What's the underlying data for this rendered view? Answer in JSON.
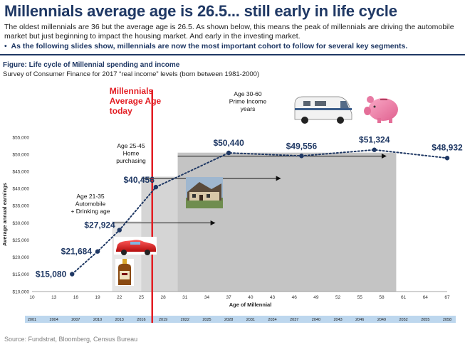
{
  "header": {
    "title": "Millennials average age is 26.5... still early in life cycle",
    "subtitle": "The oldest millennials are 36 but the average age is 26.5.  As shown below, this means the peak of millennials are driving the automobile market but just beginning to impact the housing market.  And early in the investing market.",
    "bullet": "As the following slides show, millennials are now the most important cohort to follow for several key segments."
  },
  "figure": {
    "title": "Figure: Life cycle of Millennial spending and income",
    "subtitle": "Survey of Consumer Finance for 2017 “real income” levels (born between 1981-2000)"
  },
  "source": "Source: Fundstrat, Bloomberg, Census Bureau",
  "colors": {
    "title": "#1f3864",
    "series": "#1f3864",
    "marker": "#e31e24",
    "band_light": "#e6e6e6",
    "band_mid": "#d5d5d5",
    "band_dark": "#c4c4c4",
    "year_strip": "#bdd7ee"
  },
  "chart_data": {
    "type": "line",
    "xlabel": "Age of Millennial",
    "ylabel": "Average annual earnings",
    "xlim": [
      10,
      67
    ],
    "ylim": [
      10000,
      55000
    ],
    "x_ticks": [
      "10",
      "13",
      "16",
      "19",
      "22",
      "25",
      "28",
      "31",
      "34",
      "37",
      "40",
      "43",
      "46",
      "49",
      "52",
      "55",
      "58",
      "61",
      "64",
      "67"
    ],
    "y_ticks": [
      "$10,000",
      "$15,000",
      "$20,000",
      "$25,000",
      "$30,000",
      "$35,000",
      "$40,000",
      "$45,000",
      "$50,000",
      "$55,000"
    ],
    "year_row": [
      "2001",
      "2004",
      "2007",
      "2010",
      "2013",
      "2016",
      "2019",
      "2022",
      "2025",
      "2028",
      "2031",
      "2034",
      "2037",
      "2040",
      "2043",
      "2046",
      "2049",
      "2052",
      "2055",
      "2058"
    ],
    "series": [
      {
        "x": [
          15.5,
          19,
          22,
          27,
          37,
          47,
          57,
          67
        ],
        "y": [
          15080,
          21684,
          27924,
          40456,
          50440,
          49556,
          51324,
          48932
        ]
      }
    ],
    "data_labels": [
      "$15,080",
      "$21,684",
      "$27,924",
      "$40,456",
      "$50,440",
      "$49,556",
      "$51,324",
      "$48,932"
    ],
    "marker": {
      "age": 26.5,
      "label_lines": [
        "Millennials",
        "Average Age",
        "today"
      ]
    },
    "stages": [
      {
        "lines": [
          "Age 21-35",
          "Automobile",
          "+ Drinking age"
        ],
        "from": 21,
        "to": 35
      },
      {
        "lines": [
          "Age 25-45",
          "Home",
          "purchasing"
        ],
        "from": 25,
        "to": 45
      },
      {
        "lines": [
          "Age 30-60",
          "Prime Income",
          "years"
        ],
        "from": 30,
        "to": 60
      }
    ]
  }
}
